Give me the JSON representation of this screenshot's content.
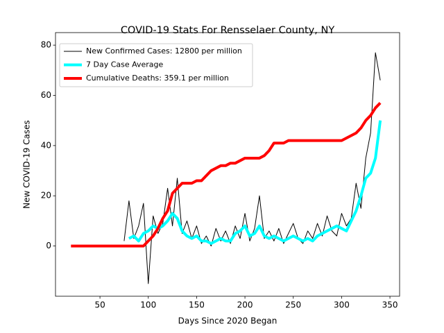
{
  "chart_data": {
    "type": "line",
    "title": "COVID-19 Stats For Rensselaer County, NY",
    "xlabel": "Days Since 2020 Began",
    "ylabel": "New COVID-19 Cases",
    "x": [
      20,
      25,
      30,
      35,
      40,
      45,
      50,
      55,
      60,
      65,
      70,
      75,
      80,
      85,
      90,
      95,
      100,
      105,
      110,
      115,
      120,
      125,
      130,
      135,
      140,
      145,
      150,
      155,
      160,
      165,
      170,
      175,
      180,
      185,
      190,
      195,
      200,
      205,
      210,
      215,
      220,
      225,
      230,
      235,
      240,
      245,
      250,
      255,
      260,
      265,
      270,
      275,
      280,
      285,
      290,
      295,
      300,
      305,
      310,
      315,
      320,
      325,
      330,
      335,
      340
    ],
    "series": [
      {
        "name": "New Confirmed Cases: 12800 per million",
        "color": "#000000",
        "linewidth": 1,
        "values": [
          null,
          null,
          null,
          null,
          null,
          null,
          null,
          null,
          null,
          null,
          null,
          2,
          18,
          3,
          8,
          17,
          -15,
          12,
          5,
          9,
          23,
          8,
          27,
          5,
          10,
          3,
          8,
          1,
          4,
          0,
          7,
          2,
          6,
          1,
          8,
          3,
          13,
          2,
          7,
          20,
          3,
          6,
          2,
          7,
          1,
          5,
          9,
          3,
          1,
          6,
          3,
          9,
          4,
          12,
          6,
          4,
          13,
          8,
          11,
          25,
          15,
          35,
          45,
          77,
          66
        ]
      },
      {
        "name": "7 Day Case Average",
        "color": "#00ffff",
        "linewidth": 4,
        "values": [
          null,
          null,
          null,
          null,
          null,
          null,
          null,
          null,
          null,
          null,
          null,
          null,
          3,
          4,
          2,
          5,
          6,
          8,
          7,
          8,
          10,
          13,
          11,
          6,
          4,
          3,
          4,
          2,
          2,
          1,
          2,
          3,
          2,
          2,
          5,
          6,
          8,
          4,
          5,
          8,
          4,
          3,
          4,
          3,
          2,
          3,
          4,
          3,
          2,
          3,
          2,
          4,
          5,
          6,
          7,
          8,
          7,
          6,
          10,
          14,
          20,
          27,
          29,
          35,
          50
        ]
      },
      {
        "name": "Cumulative Deaths: 359.1 per million",
        "color": "#ff0000",
        "linewidth": 4,
        "values": [
          0,
          0,
          0,
          0,
          0,
          0,
          0,
          0,
          0,
          0,
          0,
          0,
          0,
          0,
          0,
          0,
          2,
          4,
          7,
          11,
          14,
          21,
          23,
          25,
          25,
          25,
          26,
          26,
          28,
          30,
          31,
          32,
          32,
          33,
          33,
          34,
          35,
          35,
          35,
          35,
          36,
          38,
          41,
          41,
          41,
          42,
          42,
          42,
          42,
          42,
          42,
          42,
          42,
          42,
          42,
          42,
          42,
          43,
          44,
          45,
          47,
          50,
          52,
          55,
          57
        ]
      }
    ],
    "xlim": [
      4,
      360
    ],
    "xticks": [
      50,
      100,
      150,
      200,
      250,
      300,
      350
    ],
    "ylim": [
      -20,
      85
    ],
    "yticks": [
      0,
      20,
      40,
      60,
      80
    ],
    "grid": false,
    "legend": "upper left"
  }
}
